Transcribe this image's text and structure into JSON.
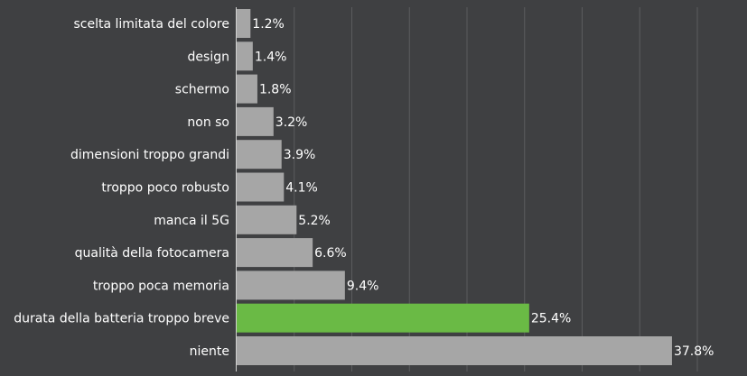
{
  "chart_data": {
    "type": "bar",
    "orientation": "horizontal",
    "categories": [
      "scelta limitata del colore",
      "design",
      "schermo",
      "non so",
      "dimensioni troppo grandi",
      "troppo poco robusto",
      "manca il 5G",
      "qualità della fotocamera",
      "troppo poca memoria",
      "durata della batteria troppo breve",
      "niente"
    ],
    "values": [
      1.2,
      1.4,
      1.8,
      3.2,
      3.9,
      4.1,
      5.2,
      6.6,
      9.4,
      25.4,
      37.8
    ],
    "value_labels": [
      "1.2%",
      "1.4%",
      "1.8%",
      "3.2%",
      "3.9%",
      "4.1%",
      "5.2%",
      "6.6%",
      "9.4%",
      "25.4%",
      "37.8%"
    ],
    "highlighted_category": "durata della batteria troppo breve",
    "xlim": [
      0,
      45
    ],
    "grid": true,
    "legend": "none",
    "title": "",
    "xlabel": "",
    "ylabel": ""
  },
  "colors": {
    "background": "#3f4042",
    "bar": "#a6a6a6",
    "highlight_bar": "#6aba45",
    "grid": "#5b5c5e",
    "axis": "#d0d0d0",
    "label_text": "#ffffff"
  }
}
